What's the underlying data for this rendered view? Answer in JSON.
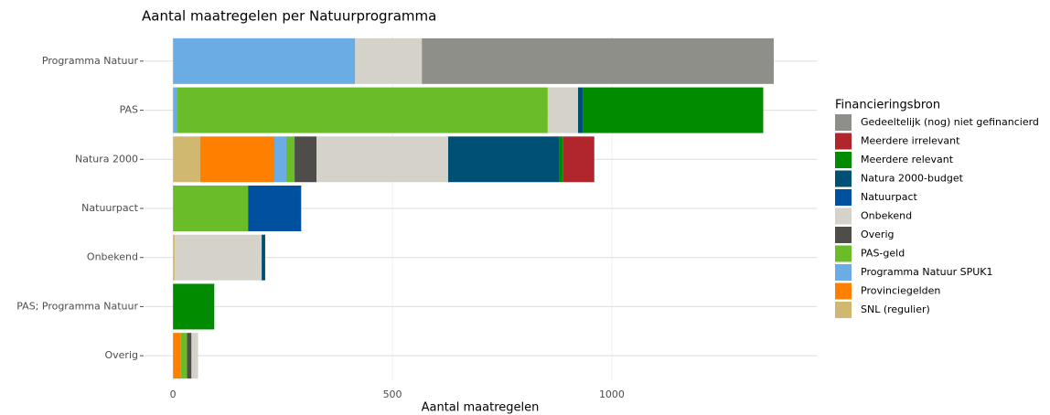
{
  "chart_data": {
    "type": "stacked-barh",
    "title": "Aantal maatregelen per Natuurprogramma",
    "x_label": "Aantal maatregelen",
    "legend_title": "Financieringsbron",
    "categories": [
      "Programma Natuur",
      "PAS",
      "Natura 2000",
      "Natuurpact",
      "Onbekend",
      "PAS; Programma Natuur",
      "Overig"
    ],
    "series": [
      {
        "name": "Gedeeltelijk (nog) niet gefinancierd",
        "color": "#8f8f8a",
        "values": [
          802,
          0,
          0,
          0,
          0,
          0,
          0
        ]
      },
      {
        "name": "Meerdere irrelevant",
        "color": "#b0262c",
        "values": [
          0,
          0,
          71,
          0,
          0,
          0,
          0
        ]
      },
      {
        "name": "Meerdere relevant",
        "color": "#008b00",
        "values": [
          0,
          410,
          8,
          0,
          0,
          94,
          0
        ]
      },
      {
        "name": "Natura 2000-budget",
        "color": "#005073",
        "values": [
          0,
          12,
          254,
          0,
          8,
          0,
          0
        ]
      },
      {
        "name": "Natuurpact",
        "color": "#0050a0",
        "values": [
          0,
          0,
          0,
          121,
          0,
          0,
          0
        ]
      },
      {
        "name": "Onbekend",
        "color": "#d5d2ca",
        "values": [
          152,
          69,
          300,
          0,
          198,
          0,
          15
        ]
      },
      {
        "name": "Overig",
        "color": "#4f4d49",
        "values": [
          0,
          0,
          50,
          0,
          0,
          0,
          10
        ]
      },
      {
        "name": "PAS-geld",
        "color": "#6abd29",
        "values": [
          0,
          844,
          19,
          171,
          0,
          0,
          15
        ]
      },
      {
        "name": "Programma Natuur SPUK1",
        "color": "#6aace3",
        "values": [
          415,
          10,
          27,
          0,
          0,
          0,
          0
        ]
      },
      {
        "name": "Provinciegelden",
        "color": "#ff7f00",
        "values": [
          0,
          0,
          169,
          0,
          0,
          0,
          17
        ]
      },
      {
        "name": "SNL (regulier)",
        "color": "#d1b871",
        "values": [
          0,
          0,
          62,
          0,
          4,
          0,
          0
        ]
      }
    ],
    "xlim": [
      -65,
      1467
    ],
    "xticks": [
      0,
      500,
      1000
    ],
    "grid": true
  }
}
